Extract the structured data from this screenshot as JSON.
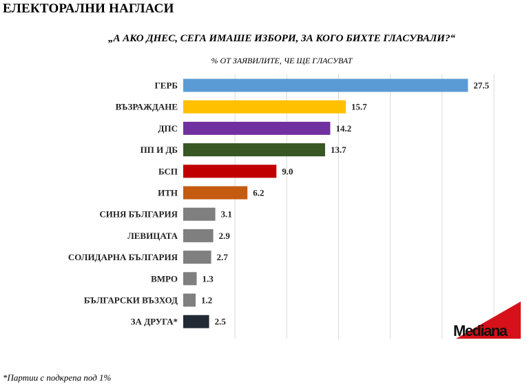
{
  "header": {
    "title": "ЕЛЕКТОРАЛНИ НАГЛАСИ"
  },
  "footnote": "*Партии с подкрепа под 1%",
  "logo": {
    "text": "Mediana",
    "accent_color": "#d6111a"
  },
  "chart_data": {
    "type": "bar",
    "orientation": "horizontal",
    "title": "„А АКО ДНЕС, СЕГА ИМАШЕ ИЗБОРИ, ЗА КОГО БИХТЕ ГЛАСУВАЛИ?“",
    "subtitle": "% ОТ ЗАЯВИЛИТЕ, ЧЕ ЩЕ ГЛАСУВАТ",
    "xlabel": "",
    "ylabel": "",
    "xlim": [
      0,
      30
    ],
    "grid": true,
    "categories": [
      "ГЕРБ",
      "ВЪЗРАЖДАНЕ",
      "ДПС",
      "ПП И ДБ",
      "БСП",
      "ИТН",
      "СИНЯ БЪЛГАРИЯ",
      "ЛЕВИЦАТА",
      "СОЛИДАРНА БЪЛГАРИЯ",
      "ВМРО",
      "БЪЛГАРСКИ ВЪЗХОД",
      "ЗА ДРУГА*"
    ],
    "values": [
      27.5,
      15.7,
      14.2,
      13.7,
      9.0,
      6.2,
      3.1,
      2.9,
      2.7,
      1.3,
      1.2,
      2.5
    ],
    "value_labels": [
      "27.5",
      "15.7",
      "14.2",
      "13.7",
      "9.0",
      "6.2",
      "3.1",
      "2.9",
      "2.7",
      "1.3",
      "1.2",
      "2.5"
    ],
    "colors": [
      "#5b9bd5",
      "#ffc000",
      "#7030a0",
      "#385723",
      "#c00000",
      "#c55a11",
      "#7f7f7f",
      "#7f7f7f",
      "#7f7f7f",
      "#7f7f7f",
      "#7f7f7f",
      "#222a35"
    ]
  }
}
